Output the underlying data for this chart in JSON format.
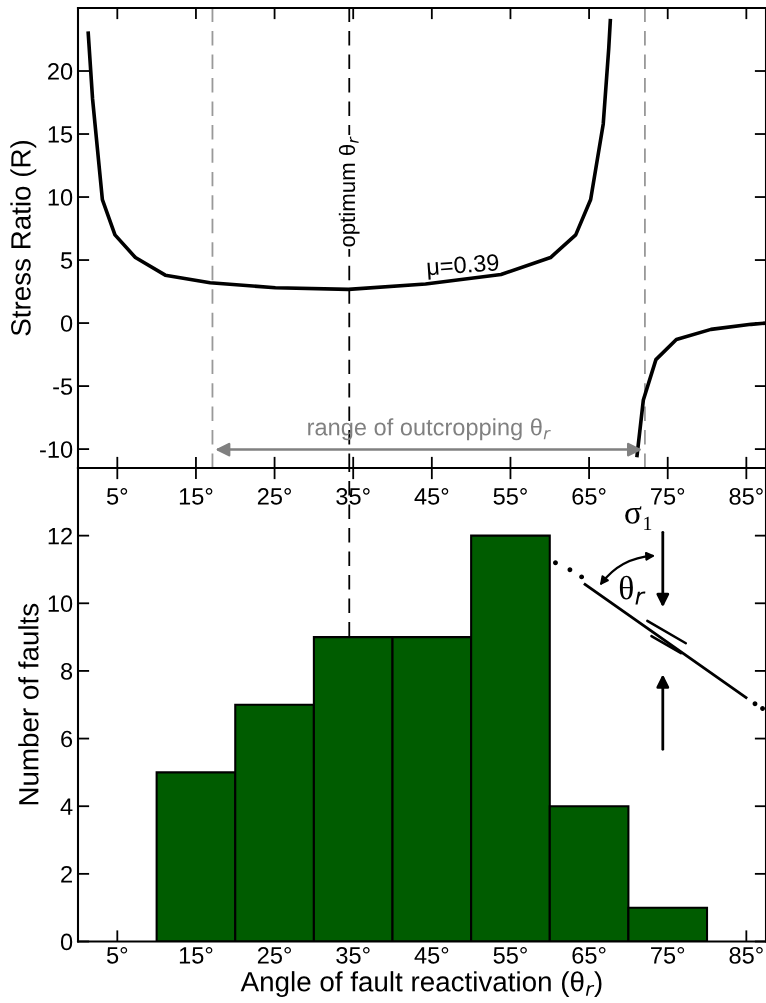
{
  "chart_data": [
    {
      "type": "line",
      "ylabel": "Stress Ratio (R)",
      "series": [
        {
          "name": "μ=0.39",
          "color": "#000000",
          "x": [
            1.3,
            1.85,
            3.1,
            4.7,
            7.3,
            11.1,
            16.8,
            25.1,
            34.4,
            44.2,
            53.8,
            60.1,
            63.3,
            65.2,
            66.8,
            67.5,
            67.7,
            69.5,
            71.1,
            71.9,
            73.5,
            76.1,
            80.5,
            85.6,
            87.5
          ],
          "values": [
            23,
            17.8,
            9.8,
            7.0,
            5.2,
            3.8,
            3.2,
            2.8,
            2.67,
            3.1,
            3.85,
            5.2,
            7.0,
            9.8,
            15.8,
            21.8,
            24,
            null,
            -10.5,
            -6.1,
            -2.9,
            -1.3,
            -0.5,
            -0.1,
            0
          ]
        }
      ],
      "xlim": [
        0,
        87.5
      ],
      "ylim": [
        -11.5,
        25
      ],
      "xticks": [
        {
          "value": 5,
          "label": "5°"
        },
        {
          "value": 15,
          "label": "15°"
        },
        {
          "value": 25,
          "label": "25°"
        },
        {
          "value": 35,
          "label": "35°"
        },
        {
          "value": 45,
          "label": "45°"
        },
        {
          "value": 55,
          "label": "55°"
        },
        {
          "value": 65,
          "label": "65°"
        },
        {
          "value": 75,
          "label": "75°"
        },
        {
          "value": 85,
          "label": "85°"
        }
      ],
      "yticks": [
        -10,
        -5,
        0,
        5,
        10,
        15,
        20
      ],
      "ref_lines": [
        {
          "axis": "x",
          "value": 17.1,
          "color": "#999999",
          "line_style": "dashed"
        },
        {
          "axis": "x",
          "value": 34.5,
          "label": "optimum θ$_{r}$",
          "color": "#000000",
          "line_style": "dashed"
        },
        {
          "axis": "x",
          "value": 72.1,
          "color": "#999999",
          "line_style": "dashed"
        }
      ],
      "annotations": [
        "range of outcropping θ$_{r}$"
      ],
      "grid": false
    },
    {
      "type": "histogram",
      "xlabel": "Angle of fault reactivation (θ$_{r}$)",
      "ylabel": "Number of faults",
      "bins": [
        10,
        20,
        30,
        40,
        50,
        60,
        70,
        80
      ],
      "values": [
        5,
        7,
        9,
        9,
        12,
        4,
        1
      ],
      "color": "#005c00",
      "xlim": [
        0,
        87.5
      ],
      "ylim": [
        0,
        14
      ],
      "xticks": [
        {
          "value": 5,
          "label": "5°"
        },
        {
          "value": 15,
          "label": "15°"
        },
        {
          "value": 25,
          "label": "25°"
        },
        {
          "value": 35,
          "label": "35°"
        },
        {
          "value": 45,
          "label": "45°"
        },
        {
          "value": 55,
          "label": "55°"
        },
        {
          "value": 65,
          "label": "65°"
        },
        {
          "value": 75,
          "label": "75°"
        },
        {
          "value": 85,
          "label": "85°"
        }
      ],
      "yticks": [
        0,
        2,
        4,
        6,
        8,
        10,
        12
      ],
      "ref_lines": [
        {
          "axis": "x",
          "value": 34.5,
          "color": "#000000",
          "line_style": "dashed"
        }
      ],
      "annotations": [
        "σ₁",
        "θ$_{r}$"
      ],
      "grid": false
    }
  ]
}
